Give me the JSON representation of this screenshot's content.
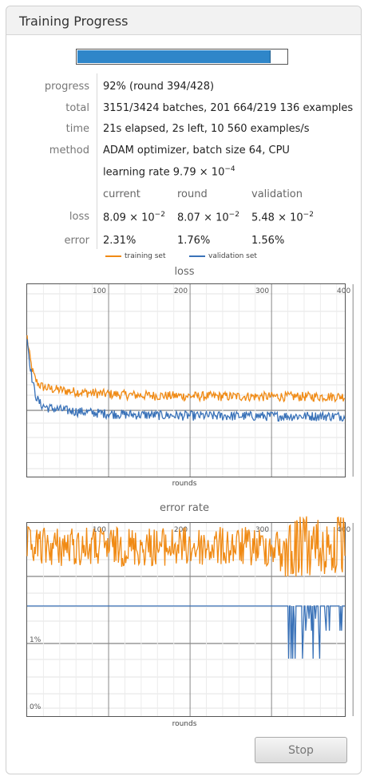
{
  "panel": {
    "title": "Training Progress"
  },
  "progress": {
    "fraction": 0.92
  },
  "stats": {
    "progress_label": "progress",
    "progress_value": "92% (round 394/428)",
    "total_label": "total",
    "total_value": "3151/3424 batches, 201 664/219 136 examples",
    "time_label": "time",
    "time_value": "21s elapsed, 2s left, 10 560 examples/s",
    "method_label": "method",
    "method_value": "ADAM optimizer, batch size 64, CPU",
    "lr_value": "learning rate 9.79 × 10",
    "lr_exp": "−4"
  },
  "metrics": {
    "headers": {
      "current": "current",
      "round": "round",
      "validation": "validation"
    },
    "loss_label": "loss",
    "error_label": "error",
    "loss": {
      "current": "8.09 × 10",
      "current_exp": "−2",
      "round": "8.07 × 10",
      "round_exp": "−2",
      "validation": "5.48 × 10",
      "validation_exp": "−2"
    },
    "error": {
      "current": "2.31%",
      "round": "1.76%",
      "validation": "1.56%"
    }
  },
  "legend": {
    "training": "training set",
    "validation": "validation set"
  },
  "colors": {
    "training": "#f08a14",
    "validation": "#3a72b8"
  },
  "chart_data": [
    {
      "type": "line",
      "title": "loss",
      "xlabel": "rounds",
      "x_ticks": [
        "100",
        "200",
        "300",
        "400"
      ],
      "x_range": [
        0,
        390
      ],
      "y_scale": "log",
      "series": [
        {
          "name": "training set",
          "start": 0.35,
          "level": 0.085,
          "noise": 0.12
        },
        {
          "name": "validation set",
          "start": 0.35,
          "level": 0.052,
          "noise": 0.12
        }
      ]
    },
    {
      "type": "line",
      "title": "error rate",
      "xlabel": "rounds",
      "x_ticks": [
        "100",
        "200",
        "300",
        "400"
      ],
      "y_ticks": [
        "1%",
        "0%"
      ],
      "x_range": [
        0,
        390
      ],
      "series": [
        {
          "name": "training set",
          "level": 2.3
        },
        {
          "name": "validation set",
          "level": 1.55
        }
      ]
    }
  ],
  "stop_label": "Stop"
}
